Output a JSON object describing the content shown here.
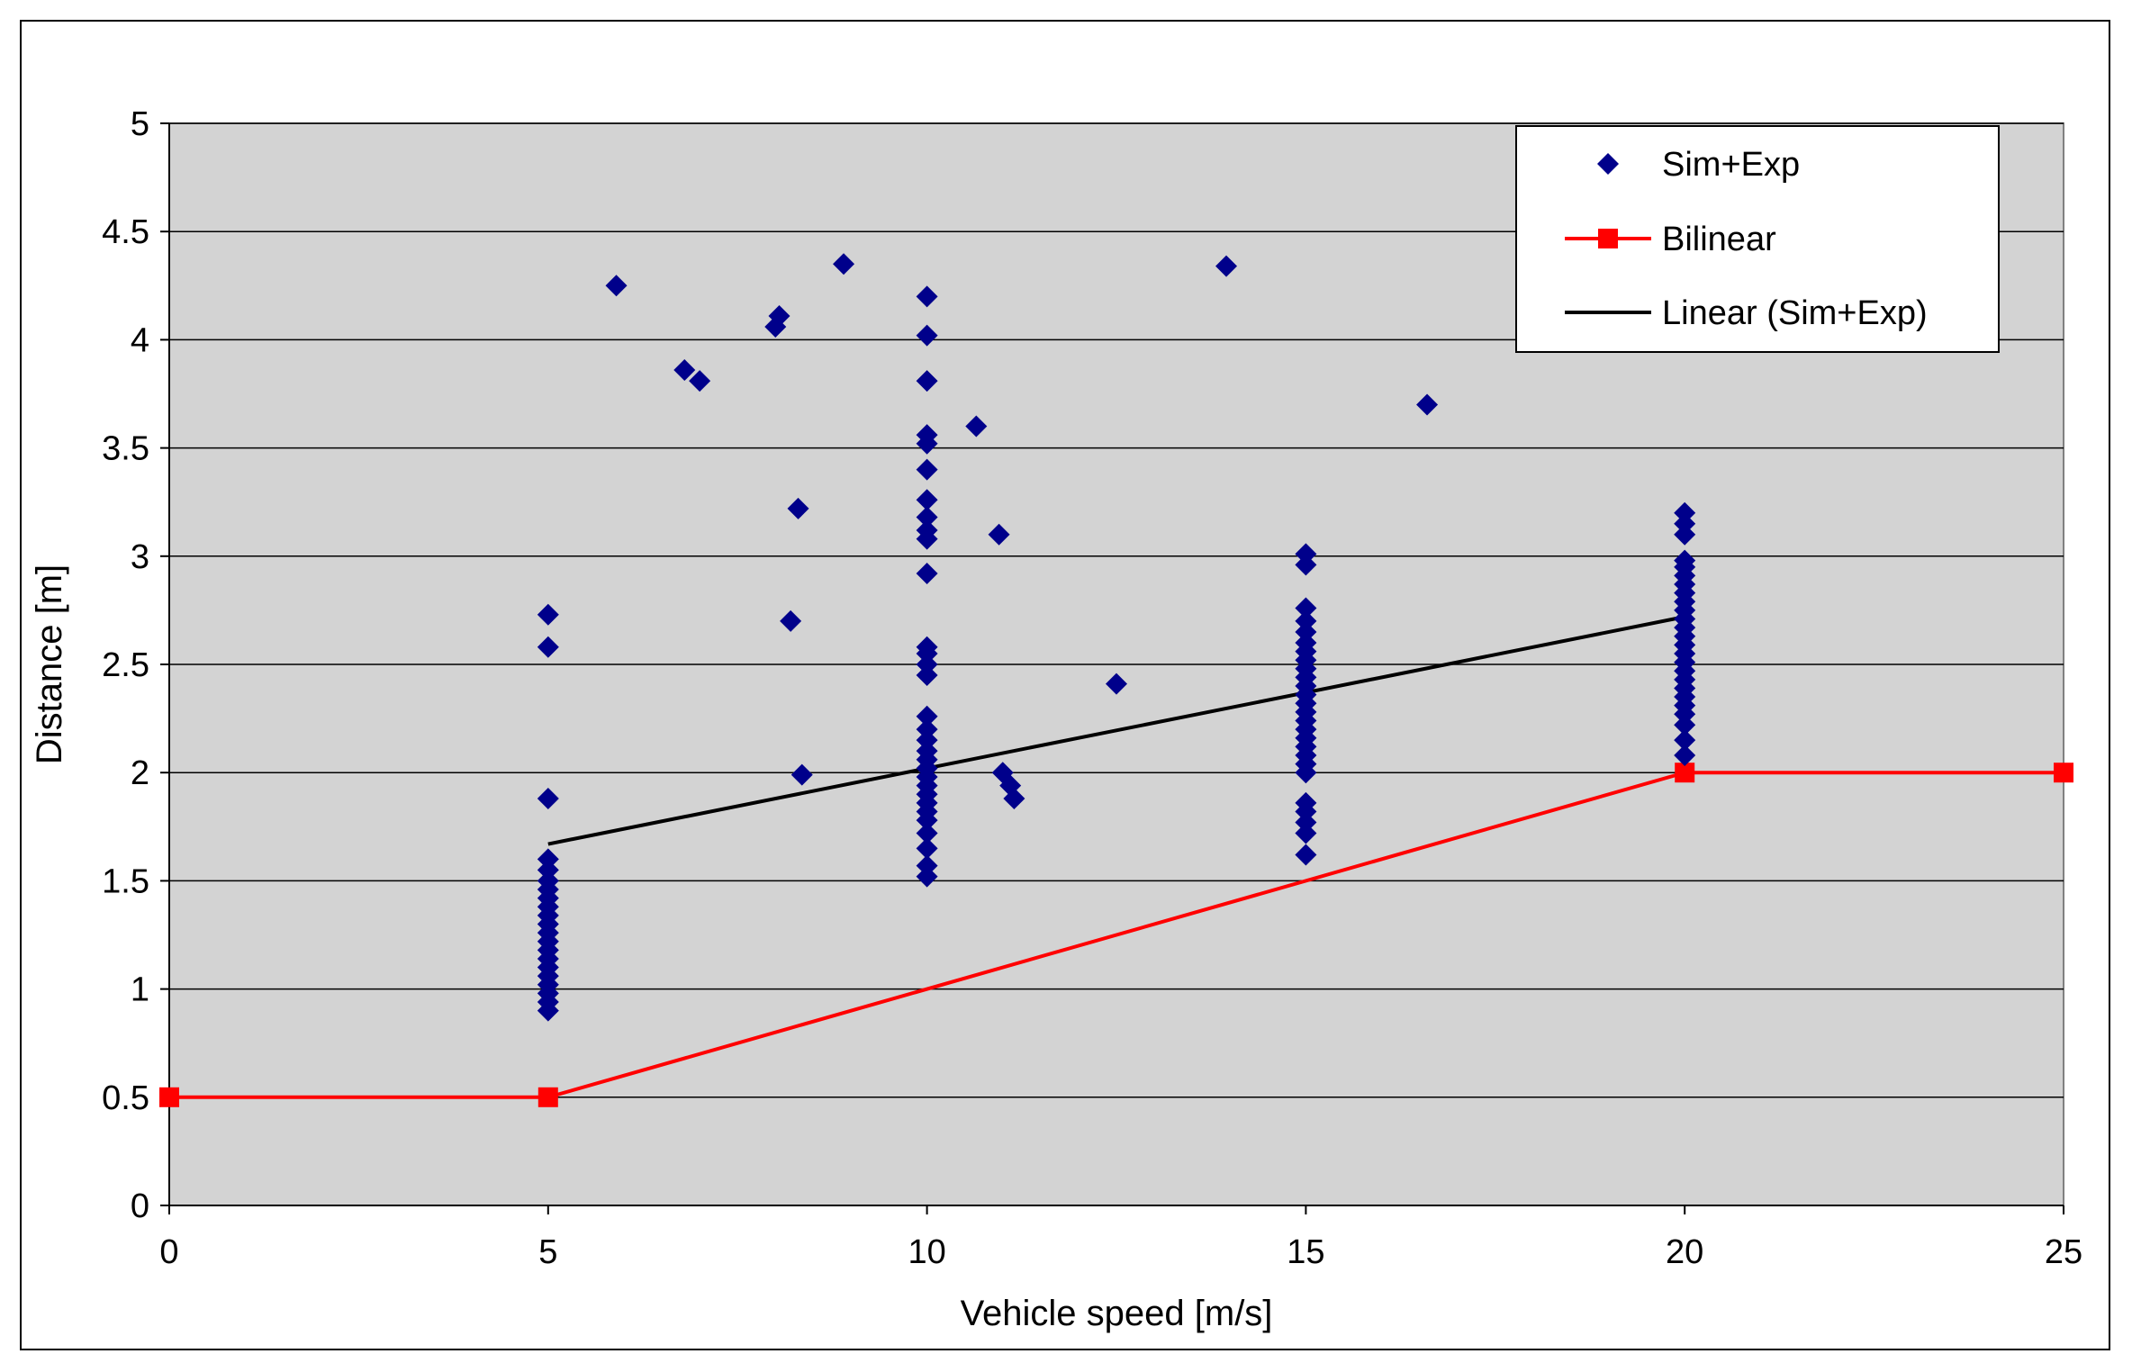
{
  "chart_data": {
    "type": "scatter",
    "xlabel": "Vehicle speed [m/s]",
    "ylabel": "Distance [m]",
    "xlim": [
      0,
      25
    ],
    "ylim": [
      0,
      5
    ],
    "xticks": [
      "0",
      "5",
      "10",
      "15",
      "20",
      "25"
    ],
    "yticks": [
      "0",
      "0.5",
      "1",
      "1.5",
      "2",
      "2.5",
      "3",
      "3.5",
      "4",
      "4.5",
      "5"
    ],
    "grid": "horizontal",
    "plot_background": "#d3d3d3",
    "legend_position": "top-right",
    "series": [
      {
        "name": "Sim+Exp",
        "kind": "scatter",
        "marker": "diamond",
        "color": "#00008b",
        "points": [
          [
            5,
            0.9
          ],
          [
            5,
            0.94
          ],
          [
            5,
            0.98
          ],
          [
            5,
            1.02
          ],
          [
            5,
            1.06
          ],
          [
            5,
            1.1
          ],
          [
            5,
            1.14
          ],
          [
            5,
            1.18
          ],
          [
            5,
            1.22
          ],
          [
            5,
            1.26
          ],
          [
            5,
            1.3
          ],
          [
            5,
            1.34
          ],
          [
            5,
            1.38
          ],
          [
            5,
            1.42
          ],
          [
            5,
            1.46
          ],
          [
            5,
            1.5
          ],
          [
            5,
            1.55
          ],
          [
            5,
            1.6
          ],
          [
            5,
            1.88
          ],
          [
            5,
            2.58
          ],
          [
            5,
            2.73
          ],
          [
            5.9,
            4.25
          ],
          [
            6.8,
            3.86
          ],
          [
            7.0,
            3.81
          ],
          [
            8.0,
            4.06
          ],
          [
            8.05,
            4.11
          ],
          [
            8.9,
            4.35
          ],
          [
            8.3,
            3.22
          ],
          [
            8.2,
            2.7
          ],
          [
            8.35,
            1.99
          ],
          [
            10,
            1.52
          ],
          [
            10,
            1.57
          ],
          [
            10,
            1.65
          ],
          [
            10,
            1.72
          ],
          [
            10,
            1.78
          ],
          [
            10,
            1.82
          ],
          [
            10,
            1.86
          ],
          [
            10,
            1.9
          ],
          [
            10,
            1.94
          ],
          [
            10,
            1.98
          ],
          [
            10,
            2.02
          ],
          [
            10,
            2.06
          ],
          [
            10,
            2.1
          ],
          [
            10,
            2.15
          ],
          [
            10,
            2.2
          ],
          [
            10,
            2.26
          ],
          [
            10,
            2.45
          ],
          [
            10,
            2.5
          ],
          [
            10,
            2.55
          ],
          [
            10,
            2.58
          ],
          [
            10,
            2.92
          ],
          [
            10,
            3.08
          ],
          [
            10,
            3.12
          ],
          [
            10,
            3.18
          ],
          [
            10,
            3.26
          ],
          [
            10,
            3.4
          ],
          [
            10,
            3.52
          ],
          [
            10,
            3.56
          ],
          [
            10,
            3.81
          ],
          [
            10,
            4.02
          ],
          [
            10,
            4.2
          ],
          [
            10.65,
            3.6
          ],
          [
            10.95,
            3.1
          ],
          [
            11.0,
            2.0
          ],
          [
            11.1,
            1.94
          ],
          [
            11.15,
            1.88
          ],
          [
            12.5,
            2.41
          ],
          [
            13.95,
            4.34
          ],
          [
            16.6,
            3.7
          ],
          [
            15,
            1.62
          ],
          [
            15,
            1.72
          ],
          [
            15,
            1.77
          ],
          [
            15,
            1.82
          ],
          [
            15,
            1.86
          ],
          [
            15,
            2.0
          ],
          [
            15,
            2.04
          ],
          [
            15,
            2.08
          ],
          [
            15,
            2.12
          ],
          [
            15,
            2.16
          ],
          [
            15,
            2.2
          ],
          [
            15,
            2.24
          ],
          [
            15,
            2.28
          ],
          [
            15,
            2.32
          ],
          [
            15,
            2.36
          ],
          [
            15,
            2.4
          ],
          [
            15,
            2.44
          ],
          [
            15,
            2.48
          ],
          [
            15,
            2.52
          ],
          [
            15,
            2.56
          ],
          [
            15,
            2.6
          ],
          [
            15,
            2.65
          ],
          [
            15,
            2.7
          ],
          [
            15,
            2.76
          ],
          [
            15,
            2.96
          ],
          [
            15,
            3.01
          ],
          [
            20,
            2.08
          ],
          [
            20,
            2.15
          ],
          [
            20,
            2.22
          ],
          [
            20,
            2.27
          ],
          [
            20,
            2.31
          ],
          [
            20,
            2.35
          ],
          [
            20,
            2.39
          ],
          [
            20,
            2.43
          ],
          [
            20,
            2.47
          ],
          [
            20,
            2.51
          ],
          [
            20,
            2.55
          ],
          [
            20,
            2.59
          ],
          [
            20,
            2.63
          ],
          [
            20,
            2.67
          ],
          [
            20,
            2.71
          ],
          [
            20,
            2.75
          ],
          [
            20,
            2.79
          ],
          [
            20,
            2.83
          ],
          [
            20,
            2.87
          ],
          [
            20,
            2.91
          ],
          [
            20,
            2.95
          ],
          [
            20,
            2.98
          ],
          [
            20,
            3.1
          ],
          [
            20,
            3.15
          ],
          [
            20,
            3.2
          ]
        ]
      },
      {
        "name": "Bilinear",
        "kind": "line-marker",
        "marker": "square",
        "color": "#ff0000",
        "points": [
          [
            0,
            0.5
          ],
          [
            5,
            0.5
          ],
          [
            20,
            2.0
          ],
          [
            25,
            2.0
          ]
        ]
      },
      {
        "name": "Linear (Sim+Exp)",
        "kind": "line",
        "color": "#000000",
        "points": [
          [
            5,
            1.67
          ],
          [
            20,
            2.72
          ]
        ]
      }
    ]
  }
}
